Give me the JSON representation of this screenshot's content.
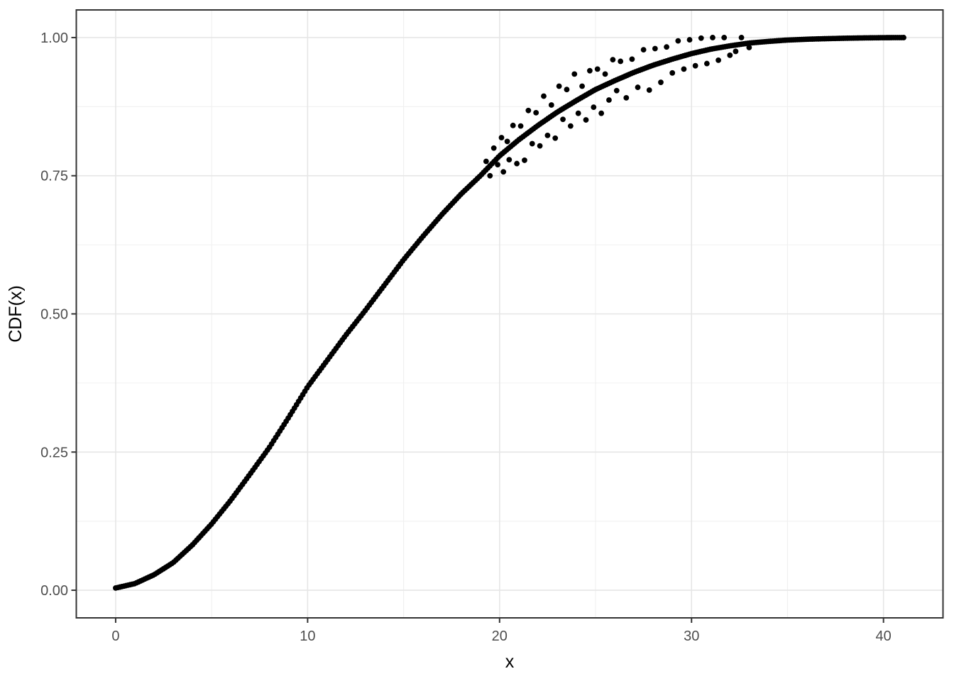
{
  "chart_data": {
    "type": "scatter",
    "title": "",
    "xlabel": "x",
    "ylabel": "CDF(x)",
    "xlim": [
      -2.05,
      43.1
    ],
    "ylim": [
      -0.05,
      1.05
    ],
    "grid": true,
    "legend": "none",
    "x_major_ticks": [
      0,
      10,
      20,
      30,
      40
    ],
    "x_tick_labels": [
      "0",
      "10",
      "20",
      "30",
      "40"
    ],
    "x_minor_ticks": [
      5,
      15,
      25,
      35
    ],
    "y_major_ticks": [
      0.0,
      0.25,
      0.5,
      0.75,
      1.0
    ],
    "y_tick_labels": [
      "0.00",
      "0.25",
      "0.50",
      "0.75",
      "1.00"
    ],
    "y_minor_ticks": [
      0.125,
      0.375,
      0.625,
      0.875
    ],
    "colors": {
      "point": "#000000",
      "panel_border": "#333333",
      "tick_mark": "#333333",
      "grid_major": "#e6e6e6",
      "grid_minor": "#f0f0f0",
      "panel_background": "#ffffff",
      "tick_text": "#4d4d4d",
      "title_text": "#000000"
    },
    "curve_x_range": [
      0,
      41.05
    ],
    "curve_sample_count": 380,
    "curve_anchors": [
      [
        0,
        0.004
      ],
      [
        1,
        0.012
      ],
      [
        2,
        0.028
      ],
      [
        3,
        0.05
      ],
      [
        4,
        0.082
      ],
      [
        5,
        0.12
      ],
      [
        6,
        0.163
      ],
      [
        7,
        0.21
      ],
      [
        8,
        0.258
      ],
      [
        9,
        0.312
      ],
      [
        10,
        0.368
      ],
      [
        11,
        0.415
      ],
      [
        12,
        0.462
      ],
      [
        13,
        0.506
      ],
      [
        14,
        0.552
      ],
      [
        15,
        0.598
      ],
      [
        16,
        0.64
      ],
      [
        17,
        0.68
      ],
      [
        18,
        0.717
      ],
      [
        19,
        0.75
      ],
      [
        20,
        0.786
      ],
      [
        21,
        0.815
      ],
      [
        22,
        0.841
      ],
      [
        23,
        0.865
      ],
      [
        24,
        0.886
      ],
      [
        25,
        0.906
      ],
      [
        26,
        0.922
      ],
      [
        27,
        0.937
      ],
      [
        28,
        0.95
      ],
      [
        29,
        0.961
      ],
      [
        30,
        0.971
      ],
      [
        31,
        0.979
      ],
      [
        32,
        0.985
      ],
      [
        33,
        0.99
      ],
      [
        34,
        0.993
      ],
      [
        35,
        0.9955
      ],
      [
        36,
        0.997
      ],
      [
        37,
        0.998
      ],
      [
        38,
        0.9988
      ],
      [
        39,
        0.9994
      ],
      [
        40,
        0.9998
      ],
      [
        41,
        1.0
      ]
    ],
    "scatter_points": [
      [
        19.3,
        0.776
      ],
      [
        19.5,
        0.75
      ],
      [
        19.7,
        0.8
      ],
      [
        19.9,
        0.77
      ],
      [
        20.1,
        0.819
      ],
      [
        20.2,
        0.757
      ],
      [
        20.4,
        0.812
      ],
      [
        20.5,
        0.779
      ],
      [
        20.7,
        0.841
      ],
      [
        20.9,
        0.772
      ],
      [
        21.1,
        0.84
      ],
      [
        21.3,
        0.778
      ],
      [
        21.5,
        0.868
      ],
      [
        21.7,
        0.808
      ],
      [
        21.9,
        0.864
      ],
      [
        22.1,
        0.804
      ],
      [
        22.3,
        0.894
      ],
      [
        22.5,
        0.823
      ],
      [
        22.7,
        0.878
      ],
      [
        22.9,
        0.818
      ],
      [
        23.1,
        0.912
      ],
      [
        23.3,
        0.852
      ],
      [
        23.5,
        0.906
      ],
      [
        23.7,
        0.84
      ],
      [
        23.9,
        0.934
      ],
      [
        24.1,
        0.863
      ],
      [
        24.3,
        0.912
      ],
      [
        24.5,
        0.851
      ],
      [
        24.7,
        0.94
      ],
      [
        24.9,
        0.874
      ],
      [
        25.1,
        0.943
      ],
      [
        25.3,
        0.863
      ],
      [
        25.5,
        0.934
      ],
      [
        25.7,
        0.887
      ],
      [
        25.9,
        0.96
      ],
      [
        26.1,
        0.904
      ],
      [
        26.3,
        0.957
      ],
      [
        26.6,
        0.891
      ],
      [
        26.9,
        0.961
      ],
      [
        27.2,
        0.91
      ],
      [
        27.5,
        0.978
      ],
      [
        27.8,
        0.905
      ],
      [
        28.1,
        0.98
      ],
      [
        28.4,
        0.919
      ],
      [
        28.7,
        0.983
      ],
      [
        29.0,
        0.936
      ],
      [
        29.3,
        0.994
      ],
      [
        29.6,
        0.943
      ],
      [
        29.9,
        0.996
      ],
      [
        30.2,
        0.949
      ],
      [
        30.5,
        0.999
      ],
      [
        30.8,
        0.953
      ],
      [
        31.1,
        1.0
      ],
      [
        31.4,
        0.959
      ],
      [
        31.7,
        1.0
      ],
      [
        32.0,
        0.968
      ],
      [
        32.3,
        0.975
      ],
      [
        32.6,
        1.0
      ],
      [
        33.0,
        0.982
      ]
    ]
  }
}
